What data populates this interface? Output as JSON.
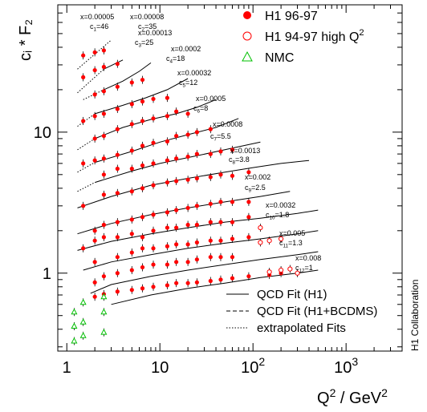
{
  "chart_data": {
    "type": "scatter",
    "title": "",
    "xlabel": "Q² / GeV²",
    "ylabel": "cᵢ * F₂",
    "x_scale": "log",
    "y_scale": "log",
    "xlim": [
      0.8,
      4000
    ],
    "ylim": [
      0.28,
      80
    ],
    "x_ticks": [
      {
        "value": 1,
        "label": "1"
      },
      {
        "value": 10,
        "label": "10"
      },
      {
        "value": 100,
        "label": "10",
        "sup": "2"
      },
      {
        "value": 1000,
        "label": "10",
        "sup": "3"
      }
    ],
    "y_ticks": [
      {
        "value": 1,
        "label": "1"
      },
      {
        "value": 10,
        "label": "10"
      }
    ],
    "side_label": "H1 Collaboration",
    "legend_markers": [
      {
        "name": "H1 96-97",
        "marker": "filled-circle",
        "color": "#ff0000"
      },
      {
        "name": "H1 94-97 high Q",
        "sup": "2",
        "marker": "open-circle",
        "color": "#ff0000"
      },
      {
        "name": "NMC",
        "marker": "open-triangle",
        "color": "#00c000"
      }
    ],
    "legend_lines": [
      {
        "name": "QCD Fit (H1)",
        "style": "solid"
      },
      {
        "name": "QCD Fit (H1+BCDMS)",
        "style": "dashed"
      },
      {
        "name": "extrapolated Fits",
        "style": "dotted"
      }
    ],
    "bins": [
      {
        "x_label": "x=0.00005",
        "c_label": "c",
        "c_sub": "1",
        "c_value": "=46"
      },
      {
        "x_label": "x=0.00008",
        "c_label": "c",
        "c_sub": "2",
        "c_value": "=35"
      },
      {
        "x_label": "x=0.00013",
        "c_label": "c",
        "c_sub": "3",
        "c_value": "=25"
      },
      {
        "x_label": "x=0.0002",
        "c_label": "c",
        "c_sub": "4",
        "c_value": "=18"
      },
      {
        "x_label": "x=0.00032",
        "c_label": "c",
        "c_sub": "5",
        "c_value": "=12"
      },
      {
        "x_label": "x=0.0005",
        "c_label": "c",
        "c_sub": "6",
        "c_value": "=8"
      },
      {
        "x_label": "x=0.0008",
        "c_label": "c",
        "c_sub": "7",
        "c_value": "=5.5"
      },
      {
        "x_label": "x=0.0013",
        "c_label": "c",
        "c_sub": "8",
        "c_value": "=3.8"
      },
      {
        "x_label": "x=0.002",
        "c_label": "c",
        "c_sub": "9",
        "c_value": "=2.5"
      },
      {
        "x_label": "x=0.0032",
        "c_label": "c",
        "c_sub": "10",
        "c_value": "=1.8"
      },
      {
        "x_label": "x=0.005",
        "c_label": "c",
        "c_sub": "11",
        "c_value": "=1.3"
      },
      {
        "x_label": "x=0.008",
        "c_label": "c",
        "c_sub": "12",
        "c_value": "=1"
      }
    ],
    "series": [
      {
        "name": "H1 96-97",
        "marker": "filled-circle",
        "color": "#ff0000",
        "points": [
          [
            1.5,
            35.0
          ],
          [
            2.0,
            36.8
          ],
          [
            2.5,
            38.0
          ],
          [
            1.5,
            24.5
          ],
          [
            2.0,
            27.5
          ],
          [
            2.5,
            29.0
          ],
          [
            3.5,
            30.5
          ],
          [
            2.0,
            18.5
          ],
          [
            2.5,
            19.5
          ],
          [
            3.5,
            21.0
          ],
          [
            5.0,
            22.5
          ],
          [
            6.5,
            23.5
          ],
          [
            1.5,
            12.0
          ],
          [
            2.0,
            13.0
          ],
          [
            2.5,
            13.5
          ],
          [
            3.5,
            14.6
          ],
          [
            5.0,
            15.8
          ],
          [
            6.5,
            16.5
          ],
          [
            8.5,
            17.2
          ],
          [
            12.0,
            17.5
          ],
          [
            2.0,
            9.0
          ],
          [
            2.5,
            9.4
          ],
          [
            3.5,
            10.5
          ],
          [
            5.0,
            11.4
          ],
          [
            6.5,
            12.0
          ],
          [
            8.5,
            12.5
          ],
          [
            12.0,
            13.0
          ],
          [
            15.0,
            14.0
          ],
          [
            20.0,
            13.5
          ],
          [
            1.5,
            6.0
          ],
          [
            2.0,
            6.3
          ],
          [
            2.5,
            6.5
          ],
          [
            3.5,
            6.9
          ],
          [
            5.0,
            7.4
          ],
          [
            6.5,
            8.0
          ],
          [
            8.5,
            8.4
          ],
          [
            12.0,
            8.6
          ],
          [
            15.0,
            9.4
          ],
          [
            20.0,
            9.6
          ],
          [
            25.0,
            10.0
          ],
          [
            35.0,
            10.5
          ],
          [
            2.5,
            5.0
          ],
          [
            3.5,
            5.5
          ],
          [
            5.0,
            5.5
          ],
          [
            6.5,
            5.8
          ],
          [
            8.5,
            6.0
          ],
          [
            12.0,
            6.3
          ],
          [
            15.0,
            6.5
          ],
          [
            20.0,
            6.7
          ],
          [
            25.0,
            7.0
          ],
          [
            35.0,
            7.0
          ],
          [
            45.0,
            7.3
          ],
          [
            60.0,
            7.5
          ],
          [
            1.5,
            3.0
          ],
          [
            2.5,
            3.6
          ],
          [
            3.5,
            3.7
          ],
          [
            5.0,
            3.8
          ],
          [
            6.5,
            4.0
          ],
          [
            8.5,
            4.2
          ],
          [
            12.0,
            4.4
          ],
          [
            15.0,
            4.5
          ],
          [
            20.0,
            4.6
          ],
          [
            25.0,
            4.7
          ],
          [
            35.0,
            4.8
          ],
          [
            45.0,
            5.0
          ],
          [
            60.0,
            4.9
          ],
          [
            90.0,
            5.2
          ],
          [
            2.0,
            2.0
          ],
          [
            2.5,
            2.2
          ],
          [
            3.5,
            2.3
          ],
          [
            5.0,
            2.4
          ],
          [
            6.5,
            2.5
          ],
          [
            8.5,
            2.6
          ],
          [
            12.0,
            2.7
          ],
          [
            15.0,
            2.8
          ],
          [
            20.0,
            2.9
          ],
          [
            25.0,
            3.0
          ],
          [
            35.0,
            3.1
          ],
          [
            45.0,
            3.2
          ],
          [
            60.0,
            3.2
          ],
          [
            90.0,
            3.2
          ],
          [
            1.5,
            1.5
          ],
          [
            2.0,
            1.7
          ],
          [
            2.5,
            1.8
          ],
          [
            3.5,
            1.8
          ],
          [
            5.0,
            1.9
          ],
          [
            6.5,
            1.8
          ],
          [
            8.5,
            2.0
          ],
          [
            12.0,
            2.1
          ],
          [
            15.0,
            2.1
          ],
          [
            20.0,
            2.2
          ],
          [
            25.0,
            2.2
          ],
          [
            35.0,
            2.3
          ],
          [
            45.0,
            2.3
          ],
          [
            60.0,
            2.3
          ],
          [
            90.0,
            2.5
          ],
          [
            2.0,
            1.2
          ],
          [
            3.5,
            1.3
          ],
          [
            5.0,
            1.4
          ],
          [
            6.5,
            1.5
          ],
          [
            8.5,
            1.5
          ],
          [
            12.0,
            1.55
          ],
          [
            15.0,
            1.6
          ],
          [
            20.0,
            1.6
          ],
          [
            25.0,
            1.65
          ],
          [
            35.0,
            1.7
          ],
          [
            45.0,
            1.7
          ],
          [
            60.0,
            1.75
          ],
          [
            90.0,
            1.8
          ],
          [
            2.0,
            0.86
          ],
          [
            2.5,
            0.95
          ],
          [
            3.5,
            1.0
          ],
          [
            5.0,
            1.05
          ],
          [
            6.5,
            1.1
          ],
          [
            8.5,
            1.15
          ],
          [
            12.0,
            1.15
          ],
          [
            15.0,
            1.2
          ],
          [
            20.0,
            1.2
          ],
          [
            25.0,
            1.25
          ],
          [
            35.0,
            1.3
          ],
          [
            45.0,
            1.3
          ],
          [
            60.0,
            1.3
          ],
          [
            2.0,
            0.68
          ],
          [
            2.5,
            0.71
          ],
          [
            3.5,
            0.74
          ],
          [
            5.0,
            0.76
          ],
          [
            6.5,
            0.78
          ],
          [
            8.5,
            0.8
          ],
          [
            12.0,
            0.82
          ],
          [
            15.0,
            0.85
          ],
          [
            20.0,
            0.85
          ],
          [
            25.0,
            0.86
          ],
          [
            35.0,
            0.88
          ],
          [
            45.0,
            0.9
          ],
          [
            60.0,
            0.92
          ],
          [
            90.0,
            0.95
          ],
          [
            150.0,
            0.97
          ],
          [
            200.0,
            1.0
          ]
        ]
      },
      {
        "name": "H1 94-97 high Q²",
        "marker": "open-circle",
        "color": "#ff0000",
        "points": [
          [
            120.0,
            2.1
          ],
          [
            120.0,
            1.65
          ],
          [
            150.0,
            1.7
          ],
          [
            200.0,
            1.75
          ],
          [
            150.0,
            1.02
          ],
          [
            200.0,
            1.05
          ],
          [
            250.0,
            1.07
          ],
          [
            300.0,
            1.0
          ]
        ]
      },
      {
        "name": "NMC",
        "marker": "open-triangle",
        "color": "#00c000",
        "points": [
          [
            1.2,
            0.53
          ],
          [
            1.5,
            0.62
          ],
          [
            2.5,
            0.68
          ],
          [
            1.2,
            0.42
          ],
          [
            1.5,
            0.45
          ],
          [
            2.5,
            0.53
          ],
          [
            1.2,
            0.33
          ],
          [
            1.5,
            0.36
          ],
          [
            2.5,
            0.38
          ]
        ]
      }
    ],
    "fits": [
      {
        "bin": 1,
        "style": "dotted",
        "x": [
          1.3,
          3.0
        ],
        "y": [
          28.0,
          45.0
        ]
      },
      {
        "bin": 2,
        "style": "dotted",
        "x": [
          1.3,
          2.5
        ],
        "y": [
          19.0,
          28.0
        ]
      },
      {
        "bin": 2,
        "style": "solid",
        "x": [
          2.5,
          4.0
        ],
        "y": [
          28.0,
          32.5
        ]
      },
      {
        "bin": 3,
        "style": "dotted",
        "x": [
          1.5,
          2.5
        ],
        "y": [
          17.0,
          20.0
        ]
      },
      {
        "bin": 3,
        "style": "solid",
        "x": [
          2.5,
          4.0,
          6.0,
          8.0
        ],
        "y": [
          20.0,
          23.0,
          27.0,
          31.0
        ]
      },
      {
        "bin": 4,
        "style": "dotted",
        "x": [
          1.3,
          2.0
        ],
        "y": [
          11.0,
          13.5
        ]
      },
      {
        "bin": 4,
        "style": "solid",
        "x": [
          2.0,
          4.0,
          7.0,
          12.0,
          20.0
        ],
        "y": [
          13.5,
          15.5,
          17.5,
          20.0,
          24.0
        ]
      },
      {
        "bin": 5,
        "style": "dotted",
        "x": [
          1.3,
          2.0
        ],
        "y": [
          7.5,
          9.0
        ]
      },
      {
        "bin": 5,
        "style": "solid",
        "x": [
          2.0,
          4.0,
          8.0,
          15.0,
          25.0,
          40.0
        ],
        "y": [
          9.0,
          10.8,
          12.3,
          13.5,
          15.0,
          17.0
        ]
      },
      {
        "bin": 6,
        "style": "dotted",
        "x": [
          1.3,
          2.0
        ],
        "y": [
          5.2,
          6.1
        ]
      },
      {
        "bin": 6,
        "style": "solid",
        "x": [
          2.0,
          5.0,
          10.0,
          20.0,
          40.0,
          70.0
        ],
        "y": [
          6.1,
          7.3,
          8.5,
          9.6,
          10.8,
          12.5
        ]
      },
      {
        "bin": 7,
        "style": "dotted",
        "x": [
          1.3,
          2.0
        ],
        "y": [
          3.8,
          4.4
        ]
      },
      {
        "bin": 7,
        "style": "solid",
        "x": [
          2.0,
          5.0,
          10.0,
          25.0,
          60.0,
          120.0
        ],
        "y": [
          4.4,
          5.3,
          6.0,
          6.8,
          7.7,
          8.5
        ]
      },
      {
        "bin": 8,
        "style": "solid",
        "x": [
          1.3,
          3.0,
          8.0,
          20.0,
          50.0,
          100.0,
          200.0,
          400.0
        ],
        "y": [
          2.9,
          3.5,
          4.2,
          4.7,
          5.2,
          5.6,
          6.0,
          6.3
        ]
      },
      {
        "bin": 9,
        "style": "solid",
        "x": [
          1.3,
          3.0,
          8.0,
          20.0,
          50.0,
          120.0,
          250.0
        ],
        "y": [
          1.9,
          2.25,
          2.6,
          2.9,
          3.2,
          3.5,
          3.8
        ]
      },
      {
        "bin": 10,
        "style": "solid",
        "x": [
          1.3,
          3.0,
          8.0,
          20.0,
          50.0,
          120.0,
          300.0,
          500.0
        ],
        "y": [
          1.45,
          1.68,
          1.9,
          2.1,
          2.3,
          2.45,
          2.65,
          2.8
        ]
      },
      {
        "bin": 11,
        "style": "solid",
        "x": [
          1.5,
          3.0,
          8.0,
          20.0,
          50.0,
          120.0,
          300.0,
          500.0
        ],
        "y": [
          1.05,
          1.2,
          1.35,
          1.5,
          1.63,
          1.75,
          1.9,
          2.0
        ]
      },
      {
        "bin": 12,
        "style": "solid",
        "x": [
          1.8,
          3.0,
          8.0,
          20.0,
          50.0,
          120.0,
          300.0,
          500.0
        ],
        "y": [
          0.72,
          0.83,
          0.95,
          1.05,
          1.15,
          1.25,
          1.35,
          1.42
        ]
      },
      {
        "bin": 13,
        "style": "solid",
        "x": [
          3.0,
          8.0,
          20.0,
          50.0,
          120.0,
          300.0,
          500.0
        ],
        "y": [
          0.6,
          0.7,
          0.78,
          0.85,
          0.93,
          1.0,
          1.05
        ]
      }
    ]
  }
}
